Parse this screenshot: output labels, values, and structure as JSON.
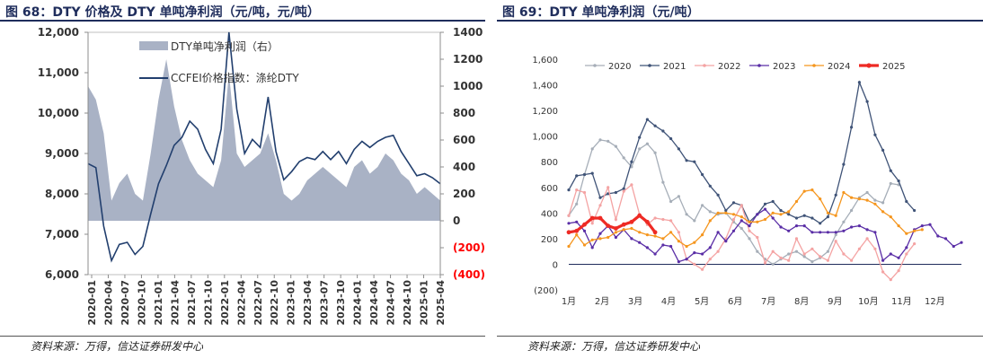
{
  "figures": [
    {
      "title": "图 68：DTY 价格及 DTY 单吨净利润（元/吨，元/吨）",
      "source": "资料来源：万得，信达证券研发中心"
    },
    {
      "title": "图 69：DTY 单吨净利润（元/吨）",
      "source": "资料来源：万得，信达证券研发中心"
    }
  ],
  "chart_data": [
    {
      "type": "area+line",
      "title": "DTY 价格及 DTY 单吨净利润（元/吨，元/吨）",
      "legend": [
        "DTY单吨净利润（右）",
        "CCFEI价格指数：涤纶DTY"
      ],
      "x_ticks": [
        "2020-01",
        "2020-04",
        "2020-07",
        "2020-10",
        "2021-01",
        "2021-04",
        "2021-07",
        "2021-10",
        "2022-01",
        "2022-04",
        "2022-07",
        "2022-10",
        "2023-01",
        "2023-04",
        "2023-07",
        "2023-10",
        "2024-01",
        "2024-04",
        "2024-07",
        "2024-10",
        "2025-01",
        "2025-04"
      ],
      "y_left_ticks": [
        "6,000",
        "7,000",
        "8,000",
        "9,000",
        "10,000",
        "11,000",
        "12,000"
      ],
      "y_left_range": [
        6000,
        12000
      ],
      "y_right_ticks": [
        "(400)",
        "(200)",
        "0",
        "200",
        "400",
        "600",
        "800",
        "1000",
        "1200",
        "1400"
      ],
      "y_right_range": [
        -400,
        1400
      ],
      "price_series": [
        8750,
        8650,
        7200,
        6350,
        6750,
        6800,
        6500,
        6700,
        7500,
        8250,
        8700,
        9200,
        9400,
        9800,
        9600,
        9100,
        8750,
        9600,
        12000,
        10100,
        9000,
        9350,
        9150,
        10400,
        9050,
        8350,
        8550,
        8800,
        8900,
        8850,
        9050,
        8850,
        9050,
        8750,
        9100,
        9300,
        9150,
        9300,
        9400,
        9450,
        9050,
        8750,
        8450,
        8500,
        8400,
        8250
      ],
      "profit_series": [
        1000,
        900,
        650,
        150,
        280,
        350,
        200,
        150,
        500,
        900,
        1200,
        850,
        600,
        450,
        350,
        300,
        250,
        450,
        1100,
        500,
        400,
        450,
        500,
        650,
        450,
        200,
        150,
        200,
        300,
        350,
        400,
        350,
        300,
        250,
        400,
        450,
        350,
        400,
        500,
        450,
        350,
        300,
        200,
        250,
        200,
        150
      ]
    },
    {
      "type": "line",
      "title": "DTY 单吨净利润（元/吨）",
      "x_ticks": [
        "1月",
        "2月",
        "3月",
        "4月",
        "5月",
        "6月",
        "7月",
        "8月",
        "9月",
        "10月",
        "11月",
        "12月"
      ],
      "y_ticks": [
        "(200)",
        "0",
        "200",
        "400",
        "600",
        "800",
        "1,000",
        "1,200",
        "1,400",
        "1,600"
      ],
      "y_range": [
        -200,
        1600
      ],
      "series": [
        {
          "name": "2020",
          "color": "#a6aeb8",
          "values": [
            380,
            470,
            700,
            900,
            970,
            960,
            920,
            830,
            760,
            900,
            940,
            870,
            640,
            490,
            530,
            390,
            340,
            460,
            410,
            390,
            400,
            330,
            280,
            200,
            100,
            40,
            0,
            40,
            80,
            100,
            60,
            20,
            50,
            100,
            230,
            330,
            420,
            520,
            560,
            500,
            480,
            630,
            620
          ]
        },
        {
          "name": "2021",
          "color": "#3f5377",
          "values": [
            580,
            690,
            700,
            710,
            520,
            550,
            560,
            590,
            800,
            990,
            1130,
            1080,
            1040,
            980,
            900,
            810,
            800,
            700,
            610,
            540,
            420,
            480,
            460,
            330,
            390,
            470,
            490,
            420,
            390,
            360,
            380,
            360,
            320,
            370,
            540,
            780,
            1070,
            1420,
            1270,
            1010,
            890,
            730,
            650,
            490,
            420
          ]
        },
        {
          "name": "2022",
          "color": "#f4a3a3",
          "values": [
            380,
            580,
            560,
            320,
            460,
            600,
            350,
            570,
            620,
            390,
            310,
            360,
            350,
            340,
            250,
            40,
            0,
            -40,
            40,
            100,
            200,
            350,
            460,
            260,
            210,
            10,
            100,
            50,
            30,
            200,
            80,
            120,
            60,
            30,
            180,
            80,
            30,
            120,
            200,
            120,
            -60,
            -120,
            -50,
            80,
            160
          ]
        },
        {
          "name": "2023",
          "color": "#5a2ea6",
          "values": [
            320,
            330,
            260,
            130,
            240,
            300,
            210,
            270,
            200,
            170,
            130,
            80,
            150,
            140,
            20,
            40,
            90,
            80,
            130,
            250,
            180,
            260,
            340,
            300,
            390,
            430,
            360,
            290,
            260,
            300,
            300,
            250,
            250,
            250,
            250,
            260,
            290,
            300,
            270,
            250,
            30,
            80,
            50,
            130,
            270,
            300,
            310,
            220,
            200,
            140,
            170
          ]
        },
        {
          "name": "2024",
          "color": "#f5961e",
          "values": [
            140,
            230,
            150,
            190,
            200,
            210,
            250,
            270,
            280,
            250,
            230,
            220,
            200,
            250,
            180,
            140,
            170,
            230,
            340,
            400,
            400,
            390,
            370,
            330,
            330,
            350,
            400,
            390,
            410,
            490,
            570,
            580,
            510,
            400,
            380,
            560,
            520,
            510,
            500,
            470,
            410,
            370,
            300,
            240,
            260,
            270
          ]
        },
        {
          "name": "2025",
          "color": "#ee2a24",
          "values": [
            250,
            260,
            310,
            360,
            360,
            300,
            280,
            310,
            330,
            380,
            330,
            250
          ]
        }
      ]
    }
  ]
}
